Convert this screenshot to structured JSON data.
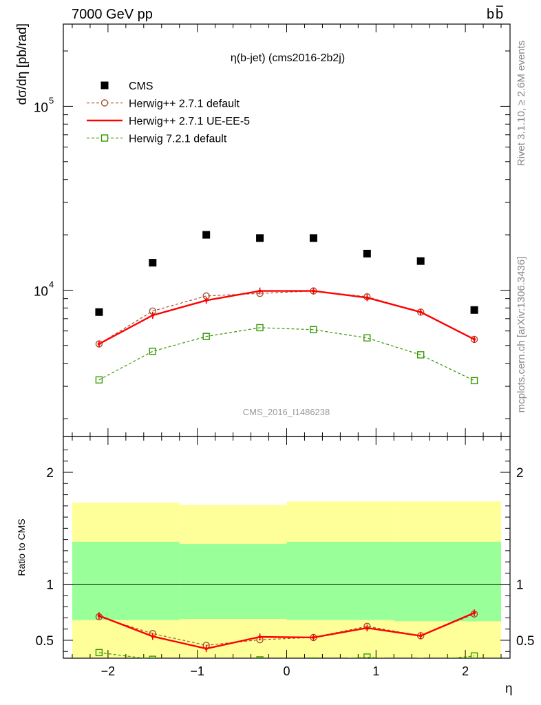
{
  "header": {
    "left": "7000 GeV pp",
    "right": "b̅b",
    "right_base": "b",
    "right_bar": "b"
  },
  "side_labels": {
    "upper": "Rivet 3.1.10, ≥ 2.6M events",
    "lower": "mcplots.cern.ch [arXiv:1306.3436]"
  },
  "watermark": "CMS_2016_I1486238",
  "chart_data": [
    {
      "type": "scatter",
      "panel": "main",
      "title": "η(b-jet) (cms2016-2b2j)",
      "ylabel": "dσ/dη [pb/rad]",
      "xlabel": "",
      "yscale": "log",
      "ylim": [
        1600,
        280000
      ],
      "xlim": [
        -2.5,
        2.5
      ],
      "y_major_ticks": [
        {
          "value": 10000,
          "base": "10",
          "exp": "4"
        },
        {
          "value": 100000,
          "base": "10",
          "exp": "5"
        }
      ],
      "legend_position": "top-left",
      "x": [
        -2.1,
        -1.5,
        -0.9,
        -0.3,
        0.3,
        0.9,
        1.5,
        2.1
      ],
      "series": [
        {
          "name": "CMS",
          "style": "data",
          "color": "#000000",
          "values": [
            7600,
            14100,
            20000,
            19200,
            19200,
            15800,
            14400,
            7800
          ]
        },
        {
          "name": "Herwig++ 2.7.1 default",
          "style": "dashed-circle",
          "color": "#a0522d",
          "values": [
            5100,
            7700,
            9300,
            9600,
            9900,
            9200,
            7600,
            5400
          ]
        },
        {
          "name": "Herwig++ 2.7.1 UE-EE-5",
          "style": "solid",
          "color": "#ff0000",
          "values": [
            5100,
            7300,
            8800,
            9900,
            9900,
            9100,
            7600,
            5400
          ]
        },
        {
          "name": "Herwig 7.2.1 default",
          "style": "dashed-square",
          "color": "#339900",
          "values": [
            3250,
            4650,
            5600,
            6250,
            6100,
            5500,
            4450,
            3220
          ]
        }
      ]
    },
    {
      "type": "line",
      "panel": "ratio",
      "ylabel": "Ratio to CMS",
      "xlabel": "η",
      "ylim": [
        0.34,
        2.32
      ],
      "xlim": [
        -2.5,
        2.5
      ],
      "y_tick_labels": [
        0.5,
        1,
        2
      ],
      "x_tick_labels": [
        -2,
        -1,
        0,
        1,
        2
      ],
      "bands": {
        "x_edges": [
          -2.4,
          -1.2,
          0.0,
          1.2,
          2.4
        ],
        "outer": {
          "color": "#ffff99",
          "low": [
            0.34,
            0.34,
            0.34,
            0.34
          ],
          "high": [
            1.73,
            1.71,
            1.74,
            1.74
          ]
        },
        "inner": {
          "color": "#99ff99",
          "low": [
            0.68,
            0.69,
            0.68,
            0.67
          ],
          "high": [
            1.38,
            1.36,
            1.38,
            1.38
          ]
        }
      },
      "x": [
        -2.1,
        -1.5,
        -0.9,
        -0.3,
        0.3,
        0.9,
        1.5,
        2.1
      ],
      "series": [
        {
          "name": "Herwig++ 2.7.1 default",
          "style": "dashed-circle",
          "color": "#a0522d",
          "values": [
            0.71,
            0.56,
            0.455,
            0.505,
            0.525,
            0.625,
            0.54,
            0.735
          ]
        },
        {
          "name": "Herwig++ 2.7.1 UE-EE-5",
          "style": "solid",
          "color": "#ff0000",
          "values": [
            0.72,
            0.535,
            0.425,
            0.53,
            0.525,
            0.61,
            0.54,
            0.745
          ]
        },
        {
          "name": "Herwig 7.2.1 default",
          "style": "dashed-square",
          "color": "#339900",
          "values": [
            0.39,
            0.33,
            0.28,
            0.325,
            0.315,
            0.35,
            0.31,
            0.36
          ]
        }
      ]
    }
  ]
}
